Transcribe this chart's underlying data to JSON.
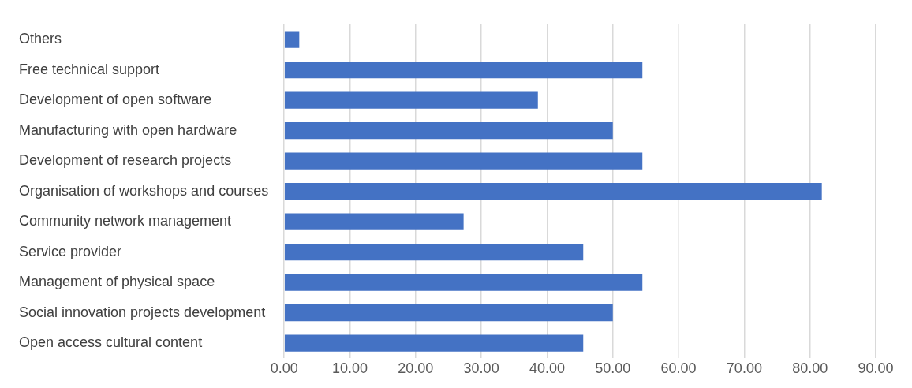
{
  "chart_data": {
    "type": "bar",
    "orientation": "horizontal",
    "categories": [
      "Others",
      "Free technical support",
      "Development of open software",
      "Manufacturing with open hardware",
      "Development of research projects",
      "Organisation of workshops and courses",
      "Community network management",
      "Service provider",
      "Management of physical space",
      "Social innovation projects development",
      "Open access cultural content"
    ],
    "values": [
      2.3,
      54.5,
      38.6,
      50,
      54.5,
      81.8,
      27.3,
      45.5,
      54.5,
      50,
      45.5
    ],
    "color": "#4472c4",
    "xlim": [
      0,
      90
    ],
    "xticks": [
      {
        "value": 0,
        "label": "0.00"
      },
      {
        "value": 10,
        "label": "10.00"
      },
      {
        "value": 20,
        "label": "20.00"
      },
      {
        "value": 30,
        "label": "30.00"
      },
      {
        "value": 40,
        "label": "40.00"
      },
      {
        "value": 50,
        "label": "50.00"
      },
      {
        "value": 60,
        "label": "60.00"
      },
      {
        "value": 70,
        "label": "70.00"
      },
      {
        "value": 80,
        "label": "80.00"
      },
      {
        "value": 90,
        "label": "90.00"
      }
    ],
    "grid": "x",
    "legend": false
  }
}
